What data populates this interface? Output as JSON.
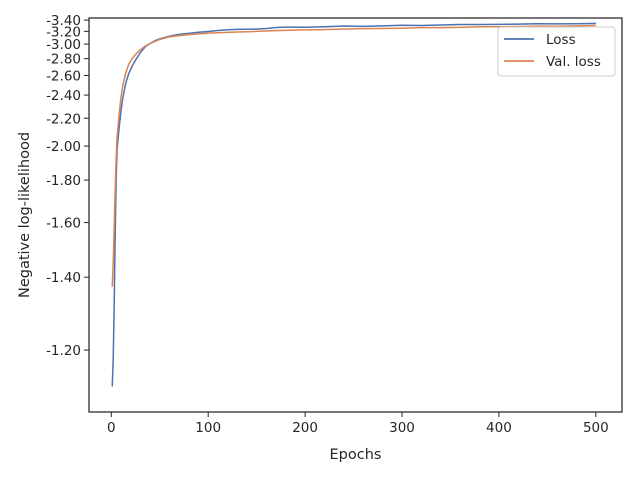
{
  "chart_data": {
    "type": "line",
    "xlabel": "Epochs",
    "ylabel": "Negative log-likelihood",
    "xlim": [
      -23,
      527
    ],
    "ylim": [
      3.44,
      1.07
    ],
    "y_scale": "reciprocal",
    "x_ticks": [
      0,
      100,
      200,
      300,
      400,
      500
    ],
    "x_tick_labels": [
      "0",
      "100",
      "200",
      "300",
      "400",
      "500"
    ],
    "y_ticks": [
      1.2,
      1.4,
      1.6,
      1.8,
      2.0,
      2.2,
      2.4,
      2.6,
      2.8,
      3.0,
      3.2,
      3.4
    ],
    "y_tick_labels": [
      "-1.20",
      "-1.40",
      "-1.60",
      "-1.80",
      "-2.00",
      "-2.20",
      "-2.40",
      "-2.60",
      "-2.80",
      "-3.00",
      "-3.20",
      "-3.40"
    ],
    "grid": false,
    "legend_position": "top-right",
    "series": [
      {
        "name": "Loss",
        "color": "#4c72b0",
        "x": [
          1,
          2,
          3,
          4,
          5,
          6,
          8,
          10,
          12,
          15,
          18,
          22,
          26,
          30,
          35,
          40,
          45,
          50,
          60,
          70,
          80,
          90,
          100,
          110,
          120,
          130,
          140,
          150,
          160,
          170,
          180,
          190,
          200,
          220,
          240,
          260,
          280,
          300,
          320,
          340,
          360,
          380,
          400,
          420,
          440,
          460,
          480,
          500
        ],
        "y": [
          1.12,
          1.18,
          1.32,
          1.55,
          1.8,
          1.98,
          2.12,
          2.26,
          2.38,
          2.52,
          2.62,
          2.72,
          2.8,
          2.88,
          2.96,
          3.01,
          3.05,
          3.08,
          3.12,
          3.15,
          3.17,
          3.19,
          3.2,
          3.21,
          3.22,
          3.23,
          3.24,
          3.245,
          3.25,
          3.26,
          3.265,
          3.27,
          3.275,
          3.28,
          3.285,
          3.29,
          3.295,
          3.3,
          3.305,
          3.31,
          3.315,
          3.32,
          3.32,
          3.325,
          3.33,
          3.33,
          3.335,
          3.335
        ]
      },
      {
        "name": "Val. loss",
        "color": "#dd8452",
        "x": [
          1,
          2,
          3,
          4,
          5,
          6,
          8,
          10,
          12,
          15,
          18,
          22,
          26,
          30,
          35,
          40,
          45,
          50,
          60,
          70,
          80,
          90,
          100,
          110,
          120,
          130,
          140,
          150,
          160,
          170,
          180,
          190,
          200,
          220,
          240,
          260,
          280,
          300,
          320,
          340,
          360,
          380,
          400,
          420,
          440,
          460,
          480,
          500
        ],
        "y": [
          1.37,
          1.45,
          1.58,
          1.75,
          1.92,
          2.06,
          2.22,
          2.38,
          2.5,
          2.63,
          2.73,
          2.81,
          2.87,
          2.92,
          2.97,
          3.01,
          3.04,
          3.07,
          3.11,
          3.13,
          3.15,
          3.16,
          3.17,
          3.175,
          3.18,
          3.19,
          3.195,
          3.2,
          3.205,
          3.21,
          3.215,
          3.22,
          3.225,
          3.23,
          3.24,
          3.245,
          3.25,
          3.255,
          3.26,
          3.265,
          3.27,
          3.275,
          3.28,
          3.285,
          3.285,
          3.29,
          3.295,
          3.3
        ]
      }
    ]
  }
}
